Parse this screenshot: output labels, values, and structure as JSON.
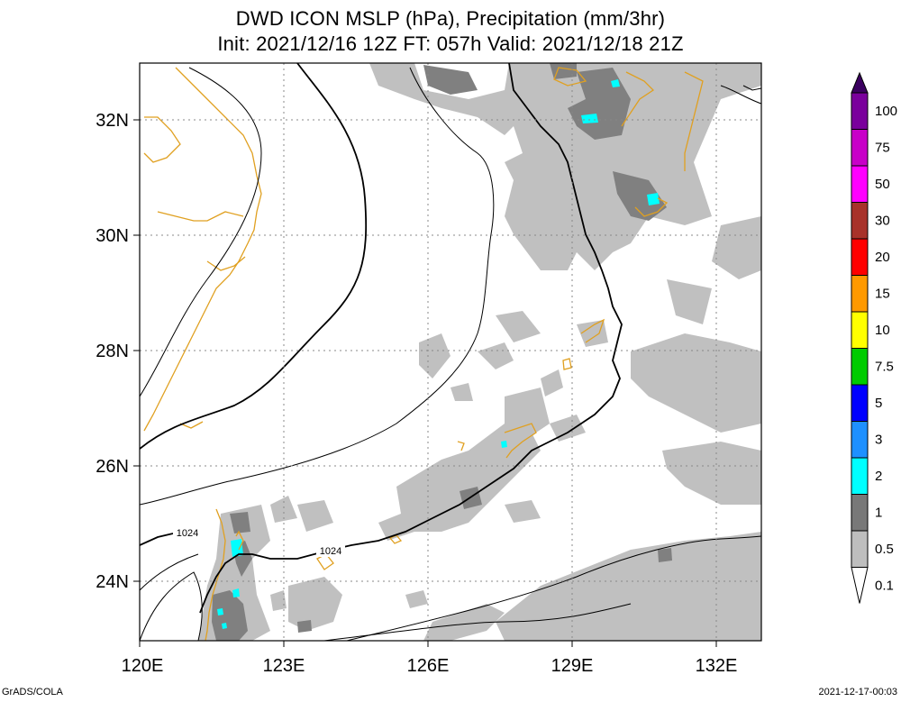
{
  "title_line1": "DWD ICON MSLP (hPa), Precipitation (mm/3hr)",
  "title_line2": "Init: 2021/12/16 12Z  FT: 057h  Valid: 2021/12/18 21Z",
  "lon_labels": [
    "120E",
    "123E",
    "126E",
    "129E",
    "132E"
  ],
  "lat_labels": [
    "32N",
    "30N",
    "28N",
    "26N",
    "24N"
  ],
  "contour_labels": [
    "1024",
    "1024"
  ],
  "colorbar": {
    "levels": [
      {
        "label": "100",
        "color": "#3b0060"
      },
      {
        "label": "75",
        "color": "#7a009c"
      },
      {
        "label": "50",
        "color": "#c800c8"
      },
      {
        "label": "30",
        "color": "#ff00ff"
      },
      {
        "label": "20",
        "color": "#a8322a"
      },
      {
        "label": "15",
        "color": "#ff0000"
      },
      {
        "label": "10",
        "color": "#ff9900"
      },
      {
        "label": "7.5",
        "color": "#ffff00"
      },
      {
        "label": "5",
        "color": "#00cc00"
      },
      {
        "label": "3",
        "color": "#0000ff"
      },
      {
        "label": "2",
        "color": "#1e90ff"
      },
      {
        "label": "1",
        "color": "#00ffff"
      },
      {
        "label": "0.5",
        "color": "#787878"
      },
      {
        "label": "0.1",
        "color": "#bebebe"
      }
    ]
  },
  "colors": {
    "coast": "#e0a020",
    "precip_light": "#c0c0c0",
    "precip_mid": "#808080",
    "precip_heavy": "#00ffff",
    "contour": "#000000"
  },
  "footer_left": "GrADS/COLA",
  "footer_right": "2021-12-17-00:03"
}
